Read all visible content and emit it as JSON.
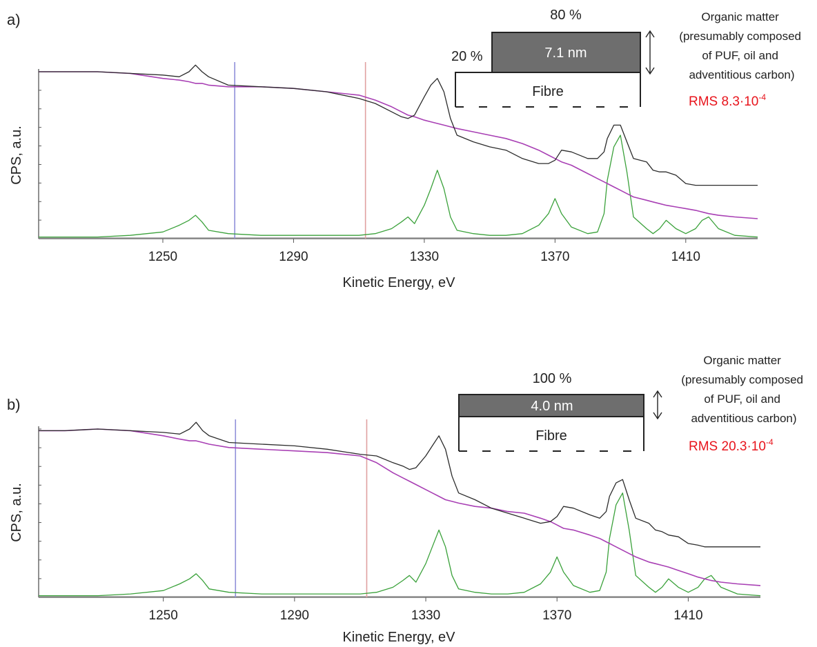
{
  "colors": {
    "measured": "#2b2b2b",
    "background": "#a83fb4",
    "peaks": "#3aa13a",
    "marker_blue": "#8f8fd9",
    "marker_red": "#e0a0a0",
    "layer_fill": "#6e6e6e",
    "rms": "#e8141c"
  },
  "chart_data": [
    {
      "panel": "a)",
      "type": "line",
      "xlabel": "Kinetic Energy, eV",
      "ylabel": "CPS, a.u.",
      "xlim": [
        1212,
        1432
      ],
      "ylim": [
        0,
        100
      ],
      "xticks": [
        1250,
        1290,
        1330,
        1370,
        1410
      ],
      "x": [
        1212,
        1220,
        1230,
        1240,
        1250,
        1255,
        1258,
        1260,
        1262,
        1264,
        1270,
        1280,
        1290,
        1300,
        1310,
        1315,
        1320,
        1323,
        1325,
        1327,
        1330,
        1332,
        1334,
        1336,
        1338,
        1340,
        1345,
        1350,
        1355,
        1360,
        1365,
        1368,
        1370,
        1372,
        1375,
        1380,
        1383,
        1385,
        1386,
        1388,
        1390,
        1392,
        1394,
        1398,
        1400,
        1402,
        1404,
        1407,
        1410,
        1413,
        1415,
        1417,
        1420,
        1425,
        1432
      ],
      "series": [
        {
          "key": "measured",
          "values": [
            100,
            100,
            100,
            99,
            98,
            97,
            100,
            104,
            100,
            97,
            92,
            91,
            90,
            88,
            84,
            81,
            76,
            73,
            72,
            74,
            85,
            92,
            96,
            88,
            72,
            62,
            58,
            55,
            53,
            48,
            45,
            45,
            47,
            53,
            52,
            48,
            48,
            52,
            60,
            68,
            68,
            58,
            48,
            46,
            41,
            40,
            40,
            38,
            33,
            32,
            32,
            32,
            32,
            32,
            32
          ]
        },
        {
          "key": "background",
          "values": [
            100,
            100,
            100,
            99,
            96,
            95,
            94,
            93,
            93,
            92,
            91,
            91,
            90,
            88,
            86,
            83,
            79,
            76,
            74,
            73,
            71,
            70,
            69,
            68,
            67,
            66,
            64,
            62,
            60,
            57,
            53,
            50,
            48,
            46,
            44,
            39,
            36,
            34,
            33,
            31,
            29,
            27,
            25,
            23,
            22,
            21,
            20,
            19,
            18,
            17,
            16,
            15,
            14,
            13,
            12
          ]
        },
        {
          "key": "peaks",
          "values": [
            1,
            1,
            1,
            2,
            4,
            8,
            11,
            14,
            10,
            5,
            3,
            2,
            2,
            2,
            2,
            3,
            6,
            10,
            13,
            9,
            20,
            30,
            41,
            30,
            13,
            5,
            3,
            2,
            2,
            3,
            8,
            15,
            24,
            15,
            7,
            3,
            4,
            15,
            35,
            55,
            62,
            40,
            13,
            6,
            3,
            6,
            11,
            6,
            3,
            6,
            11,
            13,
            6,
            2,
            1
          ]
        }
      ],
      "markers": [
        {
          "key": "marker_blue",
          "x": 1272
        },
        {
          "key": "marker_red",
          "x": 1312
        }
      ],
      "inset": {
        "coverage_top": "80 %",
        "coverage_side": "20 %",
        "layer_thickness": "7.1 nm",
        "substrate": "Fibre"
      },
      "annotation": "Organic matter\n(presumably composed\nof PUF, oil and\nadventitious carbon)",
      "rms": {
        "prefix": "RMS 8.3·10",
        "exponent": "-4"
      }
    },
    {
      "panel": "b)",
      "type": "line",
      "xlabel": "Kinetic Energy, eV",
      "ylabel": "CPS, a.u.",
      "xlim": [
        1212,
        1432
      ],
      "ylim": [
        0,
        100
      ],
      "xticks": [
        1250,
        1290,
        1330,
        1370,
        1410
      ],
      "x": [
        1212,
        1220,
        1230,
        1240,
        1250,
        1255,
        1258,
        1260,
        1262,
        1264,
        1270,
        1280,
        1290,
        1300,
        1310,
        1315,
        1320,
        1323,
        1325,
        1327,
        1330,
        1332,
        1334,
        1336,
        1338,
        1340,
        1345,
        1350,
        1355,
        1360,
        1365,
        1368,
        1370,
        1372,
        1375,
        1380,
        1383,
        1385,
        1386,
        1388,
        1390,
        1392,
        1394,
        1398,
        1400,
        1402,
        1404,
        1407,
        1410,
        1413,
        1415,
        1417,
        1420,
        1425,
        1432
      ],
      "series": [
        {
          "key": "measured",
          "values": [
            99,
            99,
            100,
            99,
            98,
            97,
            100,
            104,
            99,
            96,
            92,
            91,
            90,
            88,
            85,
            84,
            80,
            78,
            76,
            77,
            84,
            90,
            96,
            88,
            72,
            62,
            58,
            53,
            50,
            47,
            44,
            45,
            48,
            54,
            53,
            49,
            47,
            51,
            60,
            68,
            70,
            58,
            47,
            44,
            40,
            39,
            37,
            36,
            32,
            31,
            30,
            30,
            30,
            30,
            30
          ]
        },
        {
          "key": "background",
          "values": [
            99,
            99,
            100,
            99,
            96,
            94,
            93,
            93,
            92,
            91,
            89,
            88,
            87,
            86,
            84,
            80,
            74,
            71,
            69,
            67,
            64,
            62,
            60,
            58,
            57,
            56,
            54,
            53,
            51,
            50,
            47,
            45,
            43,
            41,
            40,
            37,
            35,
            33,
            32,
            30,
            28,
            26,
            24,
            21,
            20,
            19,
            18,
            16,
            14,
            12,
            11,
            10,
            9,
            8,
            7
          ]
        },
        {
          "key": "peaks",
          "values": [
            1,
            1,
            1,
            2,
            4,
            8,
            11,
            14,
            10,
            5,
            3,
            2,
            2,
            2,
            2,
            3,
            6,
            10,
            13,
            9,
            20,
            30,
            40,
            30,
            13,
            5,
            3,
            2,
            2,
            3,
            8,
            15,
            24,
            15,
            7,
            3,
            4,
            15,
            35,
            55,
            62,
            40,
            13,
            6,
            3,
            6,
            11,
            6,
            3,
            6,
            11,
            13,
            6,
            2,
            1
          ]
        }
      ],
      "markers": [
        {
          "key": "marker_blue",
          "x": 1272
        },
        {
          "key": "marker_red",
          "x": 1312
        }
      ],
      "inset": {
        "coverage_top": "100 %",
        "layer_thickness": "4.0 nm",
        "substrate": "Fibre"
      },
      "annotation": "Organic matter\n(presumably composed\nof PUF, oil and\nadventitious carbon)",
      "rms": {
        "prefix": "RMS 20.3·10",
        "exponent": "-4"
      }
    }
  ]
}
